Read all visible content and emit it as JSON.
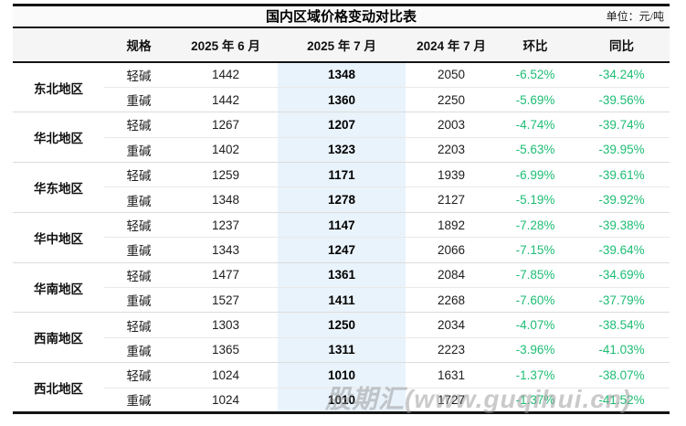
{
  "page": {
    "title": "国内区域价格变动对比表",
    "unit_label": "单位：元/吨",
    "watermark": "股期汇(www.guqihui.cn)"
  },
  "colors": {
    "frame_border": "#141414",
    "title_row_bg": "#fafafa",
    "header_row_bg": "#f5f5f5",
    "highlight_column_bg": "#e9f3fb",
    "change_green": "#1ebd74",
    "watermark_gray": "#969696"
  },
  "chart_data": {
    "type": "table",
    "title": "国内区域价格变动对比表",
    "unit": "元/吨",
    "columns": [
      "",
      "规格",
      "2025 年 6 月",
      "2025 年 7 月",
      "2024 年 7 月",
      "环比",
      "同比"
    ],
    "regions": [
      {
        "name": "东北地区",
        "rows": [
          [
            "轻碱",
            1442,
            1348,
            2050,
            "-6.52%",
            "-34.24%"
          ],
          [
            "重碱",
            1442,
            1360,
            2250,
            "-5.69%",
            "-39.56%"
          ]
        ]
      },
      {
        "name": "华北地区",
        "rows": [
          [
            "轻碱",
            1267,
            1207,
            2003,
            "-4.74%",
            "-39.74%"
          ],
          [
            "重碱",
            1402,
            1323,
            2203,
            "-5.63%",
            "-39.95%"
          ]
        ]
      },
      {
        "name": "华东地区",
        "rows": [
          [
            "轻碱",
            1259,
            1171,
            1939,
            "-6.99%",
            "-39.61%"
          ],
          [
            "重碱",
            1348,
            1278,
            2127,
            "-5.19%",
            "-39.92%"
          ]
        ]
      },
      {
        "name": "华中地区",
        "rows": [
          [
            "轻碱",
            1237,
            1147,
            1892,
            "-7.28%",
            "-39.38%"
          ],
          [
            "重碱",
            1343,
            1247,
            2066,
            "-7.15%",
            "-39.64%"
          ]
        ]
      },
      {
        "name": "华南地区",
        "rows": [
          [
            "轻碱",
            1477,
            1361,
            2084,
            "-7.85%",
            "-34.69%"
          ],
          [
            "重碱",
            1527,
            1411,
            2268,
            "-7.60%",
            "-37.79%"
          ]
        ]
      },
      {
        "name": "西南地区",
        "rows": [
          [
            "轻碱",
            1303,
            1250,
            2034,
            "-4.07%",
            "-38.54%"
          ],
          [
            "重碱",
            1365,
            1311,
            2223,
            "-3.96%",
            "-41.03%"
          ]
        ]
      },
      {
        "name": "西北地区",
        "rows": [
          [
            "轻碱",
            1024,
            1010,
            1631,
            "-1.37%",
            "-38.07%"
          ],
          [
            "重碱",
            1024,
            1010,
            1727,
            "-1.37%",
            "-41.52%"
          ]
        ]
      }
    ]
  }
}
